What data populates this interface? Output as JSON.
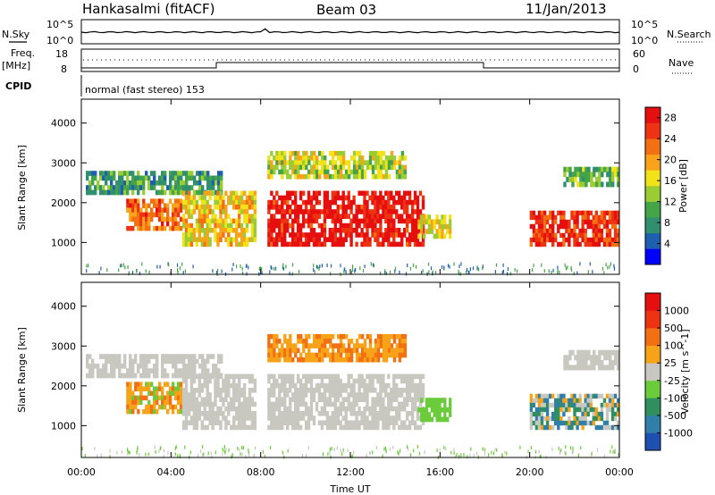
{
  "header": {
    "station": "Hankasalmi (fitACF)",
    "beam": "Beam 03",
    "date": "11/Jan/2013"
  },
  "panels": {
    "noise": {
      "left_label": "N.Sky",
      "right_label": "N.Search",
      "left_ticks": [
        "10^5",
        "10^0"
      ],
      "right_ticks": [
        "10^5",
        "10^0"
      ]
    },
    "freq": {
      "left_label_1": "Freq.",
      "left_label_2": "[MHz]",
      "right_label": "Nave",
      "left_ticks": [
        "18",
        "8"
      ],
      "right_ticks": [
        "60",
        "0"
      ]
    },
    "cpid": {
      "label": "CPID",
      "mode_text": "normal (fast stereo) 153"
    }
  },
  "chart_data": [
    {
      "type": "heatmap",
      "title": "",
      "xlabel": "Time UT",
      "ylabel": "Slant Range [km]",
      "x_ticks": [
        "00:00",
        "04:00",
        "08:00",
        "12:00",
        "16:00",
        "20:00",
        "00:00"
      ],
      "x_range_hours": [
        0,
        24
      ],
      "y_ticks": [
        1000,
        2000,
        3000,
        4000
      ],
      "ylim": [
        200,
        4600
      ],
      "colorbar": {
        "label": "Power [dB]",
        "ticks": [
          "4",
          "8",
          "12",
          "16",
          "20",
          "24",
          "28"
        ],
        "range": [
          0,
          30
        ],
        "colors": [
          "#0000ff",
          "#1f5fb0",
          "#2f8f6f",
          "#45a348",
          "#9acc33",
          "#f2e21a",
          "#f9a31a",
          "#f27012",
          "#ee3312",
          "#e60f0f"
        ]
      },
      "regions": [
        {
          "name": "early-band",
          "t": [
            0.2,
            6.3
          ],
          "range": [
            2200,
            2800
          ],
          "level": 0.25
        },
        {
          "name": "early-echo",
          "t": [
            2.0,
            4.5
          ],
          "range": [
            1300,
            2100
          ],
          "level": 0.75
        },
        {
          "name": "descending-trace",
          "t": [
            4.5,
            7.8
          ],
          "range": [
            900,
            2300
          ],
          "level": 0.55
        },
        {
          "name": "main-echo",
          "t": [
            8.3,
            15.3
          ],
          "range": [
            900,
            2300
          ],
          "level": 0.95
        },
        {
          "name": "upper-patches",
          "t": [
            8.3,
            14.5
          ],
          "range": [
            2600,
            3300
          ],
          "level": 0.45
        },
        {
          "name": "late-afternoon",
          "t": [
            15.0,
            16.5
          ],
          "range": [
            1100,
            1700
          ],
          "level": 0.5
        },
        {
          "name": "evening-echo",
          "t": [
            20.0,
            24.0
          ],
          "range": [
            900,
            1800
          ],
          "level": 0.85
        },
        {
          "name": "evening-upper",
          "t": [
            21.5,
            24.0
          ],
          "range": [
            2400,
            2900
          ],
          "level": 0.3
        }
      ]
    },
    {
      "type": "heatmap",
      "title": "",
      "xlabel": "Time UT",
      "ylabel": "Slant Range [km]",
      "x_ticks": [
        "00:00",
        "04:00",
        "08:00",
        "12:00",
        "16:00",
        "20:00",
        "00:00"
      ],
      "x_range_hours": [
        0,
        24
      ],
      "y_ticks": [
        1000,
        2000,
        3000,
        4000
      ],
      "ylim": [
        200,
        4600
      ],
      "colorbar": {
        "label": "Velocity [m s^-1]",
        "ticks": [
          "1000",
          "500",
          "100",
          "25",
          "-25",
          "-100",
          "-500",
          "-1000"
        ],
        "colors": [
          "#1f4fb0",
          "#2f7fa8",
          "#2f8f5f",
          "#6acc3a",
          "#c8c8c0",
          "#f7a31a",
          "#f27012",
          "#ee3312",
          "#e60f0f"
        ]
      },
      "regions": [
        {
          "name": "early-band",
          "t": [
            0.2,
            6.3
          ],
          "range": [
            2200,
            2800
          ],
          "velocity_class": "ground"
        },
        {
          "name": "early-echo",
          "t": [
            2.0,
            4.5
          ],
          "range": [
            1300,
            2100
          ],
          "velocity_class": "mixed-orange-green"
        },
        {
          "name": "descending-trace",
          "t": [
            4.5,
            7.8
          ],
          "range": [
            900,
            2300
          ],
          "velocity_class": "ground"
        },
        {
          "name": "main-echo",
          "t": [
            8.3,
            15.3
          ],
          "range": [
            900,
            2300
          ],
          "velocity_class": "ground"
        },
        {
          "name": "upper-patches",
          "t": [
            8.3,
            14.5
          ],
          "range": [
            2600,
            3300
          ],
          "velocity_class": "orange"
        },
        {
          "name": "late-afternoon",
          "t": [
            15.0,
            16.5
          ],
          "range": [
            1100,
            1700
          ],
          "velocity_class": "green"
        },
        {
          "name": "evening-echo",
          "t": [
            20.0,
            24.0
          ],
          "range": [
            900,
            1800
          ],
          "velocity_class": "orange-blue"
        },
        {
          "name": "evening-upper",
          "t": [
            21.5,
            24.0
          ],
          "range": [
            2400,
            2900
          ],
          "velocity_class": "ground"
        }
      ]
    }
  ]
}
